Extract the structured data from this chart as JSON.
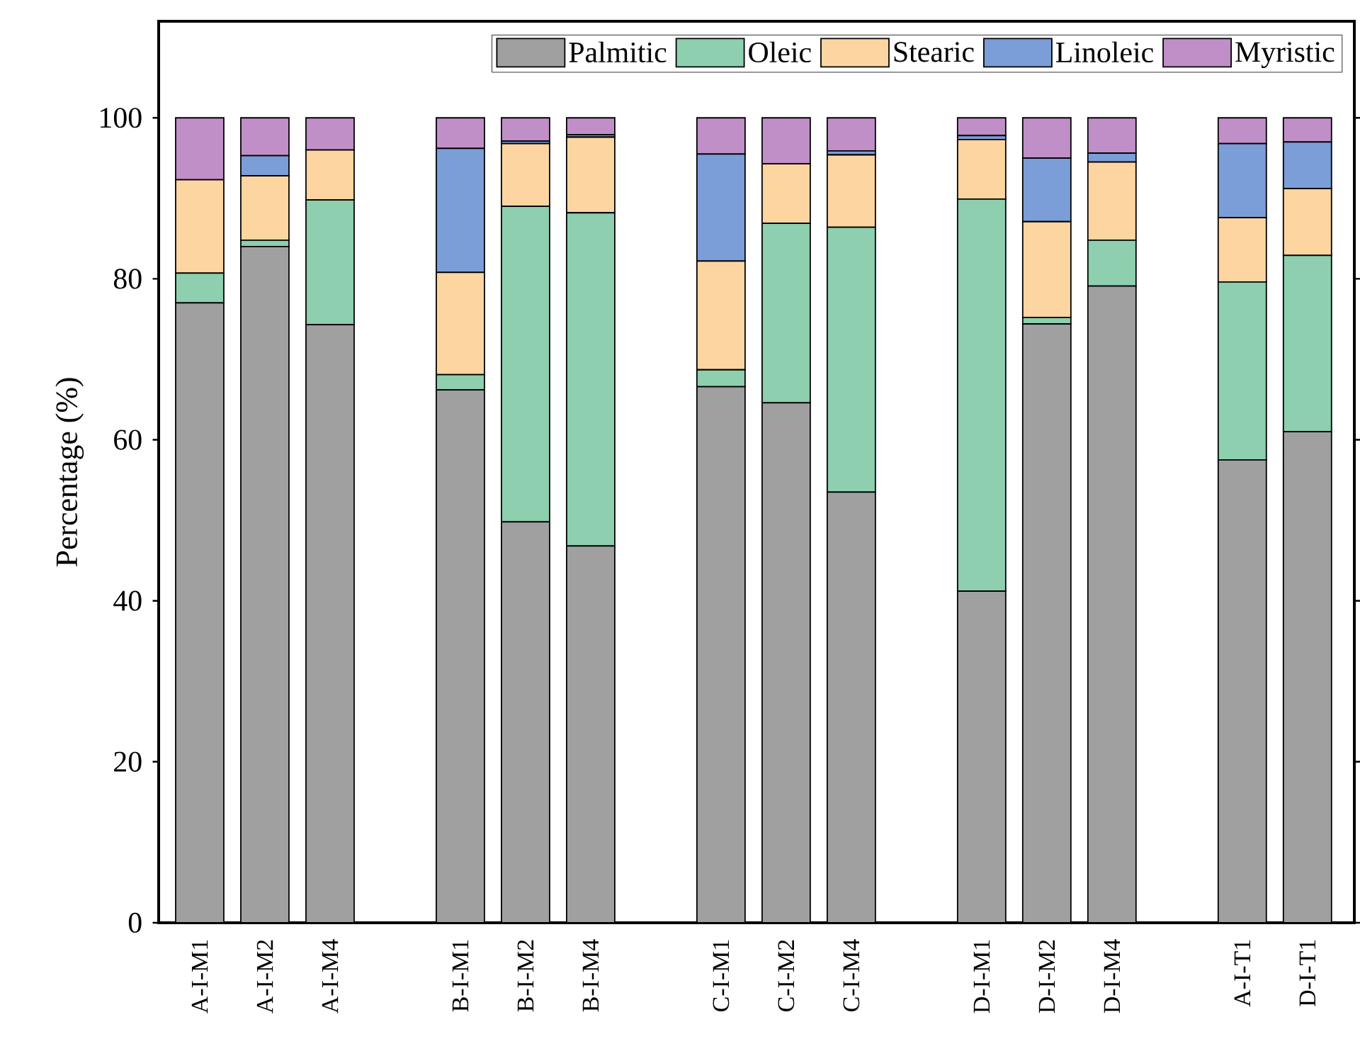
{
  "chart_data": {
    "type": "bar",
    "stacked": true,
    "ylabel": "Percentage (%)",
    "ylim": [
      0,
      112
    ],
    "yticks": [
      0,
      20,
      40,
      60,
      80,
      100
    ],
    "legend": "top right",
    "grid": false,
    "categories": [
      "A-I-M1",
      "A-I-M2",
      "A-I-M4",
      null,
      "B-I-M1",
      "B-I-M2",
      "B-I-M4",
      null,
      "C-I-M1",
      "C-I-M2",
      "C-I-M4",
      null,
      "D-I-M1",
      "D-I-M2",
      "D-I-M4",
      null,
      "A-I-T1",
      "D-I-T1"
    ],
    "series": [
      {
        "name": "Palmitic",
        "color": "#a0a0a0",
        "values": [
          77,
          84,
          74.3,
          null,
          66.2,
          49.8,
          46.8,
          null,
          66.6,
          64.6,
          53.5,
          null,
          41.2,
          74.4,
          79.1,
          null,
          57.5,
          61.0
        ]
      },
      {
        "name": "Oleic",
        "color": "#8dcfae",
        "values": [
          3.7,
          0.8,
          15.5,
          null,
          1.9,
          39.2,
          41.4,
          null,
          2.1,
          22.3,
          32.9,
          null,
          48.7,
          0.8,
          5.7,
          null,
          22.1,
          21.9
        ]
      },
      {
        "name": "Stearic",
        "color": "#fdd5a1",
        "values": [
          11.6,
          8.0,
          6.2,
          null,
          12.7,
          7.8,
          9.4,
          null,
          13.5,
          7.4,
          9.0,
          null,
          7.4,
          11.9,
          9.7,
          null,
          8.0,
          8.3
        ]
      },
      {
        "name": "Linoleic",
        "color": "#7b9ed8",
        "values": [
          0,
          2.5,
          0,
          null,
          15.4,
          0.3,
          0.3,
          null,
          13.3,
          0,
          0.5,
          null,
          0.5,
          7.9,
          1.1,
          null,
          9.2,
          5.8
        ]
      },
      {
        "name": "Myristic",
        "color": "#c08fc8",
        "values": [
          7.7,
          4.7,
          4.0,
          null,
          3.8,
          2.9,
          2.1,
          null,
          4.5,
          5.7,
          4.1,
          null,
          2.2,
          5.0,
          4.4,
          null,
          3.2,
          3.0
        ]
      }
    ]
  }
}
